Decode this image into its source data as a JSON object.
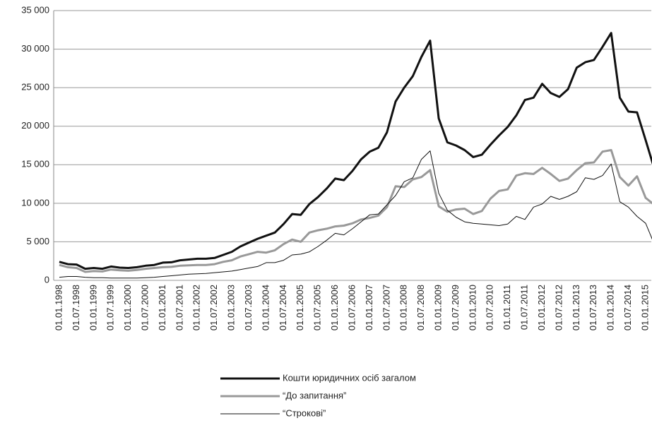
{
  "chart_data": {
    "type": "line",
    "categories": [
      "01.01.1998",
      null,
      "01.07.1998",
      null,
      "01.01.1999",
      null,
      "01.07.1999",
      null,
      "01.01.2000",
      null,
      "01.07.2000",
      null,
      "01.01.2001",
      null,
      "01.07.2001",
      null,
      "01.01.2002",
      null,
      "01.07.2002",
      null,
      "01.01.2003",
      null,
      "01.07.2003",
      null,
      "01.01.2004",
      null,
      "01.07.2004",
      null,
      "01.01.2005",
      null,
      "01.07.2005",
      null,
      "01.01.2006",
      null,
      "01.07.2006",
      null,
      "01.01.2007",
      null,
      "01.07.2007",
      null,
      "01.01.2008",
      null,
      "01.07.2008",
      null,
      "01.01.2009",
      null,
      "01.07.2009",
      null,
      "01.01.2010",
      null,
      "01.07.2010",
      null,
      "01.01.2011",
      null,
      "01.07.2011",
      null,
      "01.01.2012",
      null,
      "01.07.2012",
      null,
      "01.01.2013",
      null,
      "01.07.2013",
      null,
      "01.01.2014",
      null,
      "01.07.2014",
      null,
      "01.01.2015",
      null
    ],
    "series": [
      {
        "name": "Кошти юридичних осіб загалом",
        "color": "#111111",
        "width": 3,
        "values": [
          2400,
          2100,
          2050,
          1500,
          1600,
          1500,
          1800,
          1650,
          1600,
          1700,
          1900,
          2000,
          2300,
          2350,
          2600,
          2700,
          2800,
          2800,
          2900,
          3300,
          3700,
          4400,
          4900,
          5400,
          5800,
          6200,
          7300,
          8600,
          8500,
          9900,
          10800,
          11900,
          13200,
          13000,
          14200,
          15700,
          16700,
          17200,
          19200,
          23200,
          25000,
          26500,
          29000,
          31100,
          21000,
          17900,
          17500,
          16900,
          16000,
          16300,
          17600,
          18800,
          19900,
          21400,
          23400,
          23700,
          25500,
          24300,
          23800,
          24800,
          27600,
          28300,
          28600,
          30300,
          32100,
          23700,
          21900,
          21800,
          18200,
          14500
        ]
      },
      {
        "name": "“До запитання”",
        "color": "#999999",
        "width": 3,
        "values": [
          2000,
          1700,
          1600,
          1100,
          1200,
          1150,
          1400,
          1300,
          1250,
          1350,
          1500,
          1600,
          1700,
          1750,
          1900,
          1950,
          2000,
          2000,
          2100,
          2400,
          2600,
          3100,
          3400,
          3700,
          3600,
          3900,
          4700,
          5300,
          5000,
          6200,
          6500,
          6700,
          7000,
          7100,
          7400,
          7900,
          8100,
          8400,
          9500,
          12200,
          12100,
          13100,
          13400,
          14300,
          9600,
          8900,
          9200,
          9300,
          8600,
          9000,
          10600,
          11600,
          11800,
          13600,
          13900,
          13800,
          14600,
          13800,
          12900,
          13200,
          14300,
          15200,
          15300,
          16700,
          16900,
          13400,
          12300,
          13500,
          10700,
          9800
        ]
      },
      {
        "name": "“Строкові”",
        "color": "#111111",
        "width": 1,
        "values": [
          400,
          500,
          500,
          400,
          350,
          350,
          300,
          300,
          300,
          300,
          350,
          400,
          500,
          600,
          700,
          800,
          850,
          900,
          1000,
          1100,
          1200,
          1400,
          1600,
          1800,
          2300,
          2300,
          2600,
          3300,
          3400,
          3700,
          4400,
          5200,
          6100,
          5900,
          6700,
          7600,
          8500,
          8600,
          9800,
          11000,
          12800,
          13300,
          15700,
          16800,
          11300,
          9100,
          8200,
          7600,
          7400,
          7300,
          7200,
          7100,
          7300,
          8300,
          7900,
          9500,
          9900,
          10900,
          10500,
          10900,
          11500,
          13300,
          13100,
          13600,
          15100,
          10200,
          9500,
          8300,
          7400,
          4700
        ]
      }
    ],
    "ylim": [
      0,
      35000
    ],
    "yticks": [
      0,
      {
        "value": 5000,
        "label": "5 000"
      },
      {
        "value": 10000,
        "label": "10 000"
      },
      {
        "value": 15000,
        "label": "15 000"
      },
      {
        "value": 20000,
        "label": "20 000"
      },
      {
        "value": 25000,
        "label": "25 000"
      },
      {
        "value": 30000,
        "label": "30 000"
      },
      {
        "value": 35000,
        "label": "35 000"
      }
    ],
    "grid": true
  }
}
